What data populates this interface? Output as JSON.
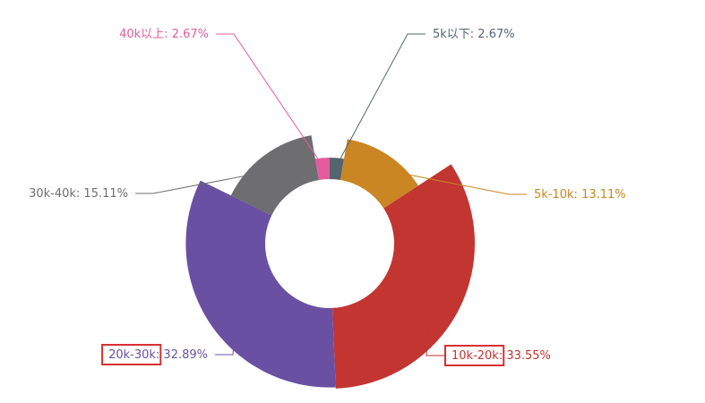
{
  "chart_data": {
    "type": "pie",
    "variant": "rose",
    "start_angle_deg": 0,
    "direction": "clockwise",
    "slices": [
      {
        "name": "5k以下",
        "label": "5k以下: 2.67%",
        "value": 2.67,
        "color": "#546570"
      },
      {
        "name": "5k-10k",
        "label": "5k-10k: 13.11%",
        "value": 13.11,
        "color": "#c98622"
      },
      {
        "name": "10k-20k",
        "label": "10k-20k: 33.55%",
        "value": 33.55,
        "color": "#c23531",
        "highlighted": true
      },
      {
        "name": "20k-30k",
        "label": "20k-30k: 32.89%",
        "value": 32.89,
        "color": "#6a50a2",
        "highlighted": true
      },
      {
        "name": "30k-40k",
        "label": "30k-40k: 15.11%",
        "value": 15.11,
        "color": "#6e6e70"
      },
      {
        "name": "40k以上",
        "label": "40k以上: 2.67%",
        "value": 2.67,
        "color": "#e45c9c"
      }
    ],
    "highlight_color": "#d63031"
  }
}
